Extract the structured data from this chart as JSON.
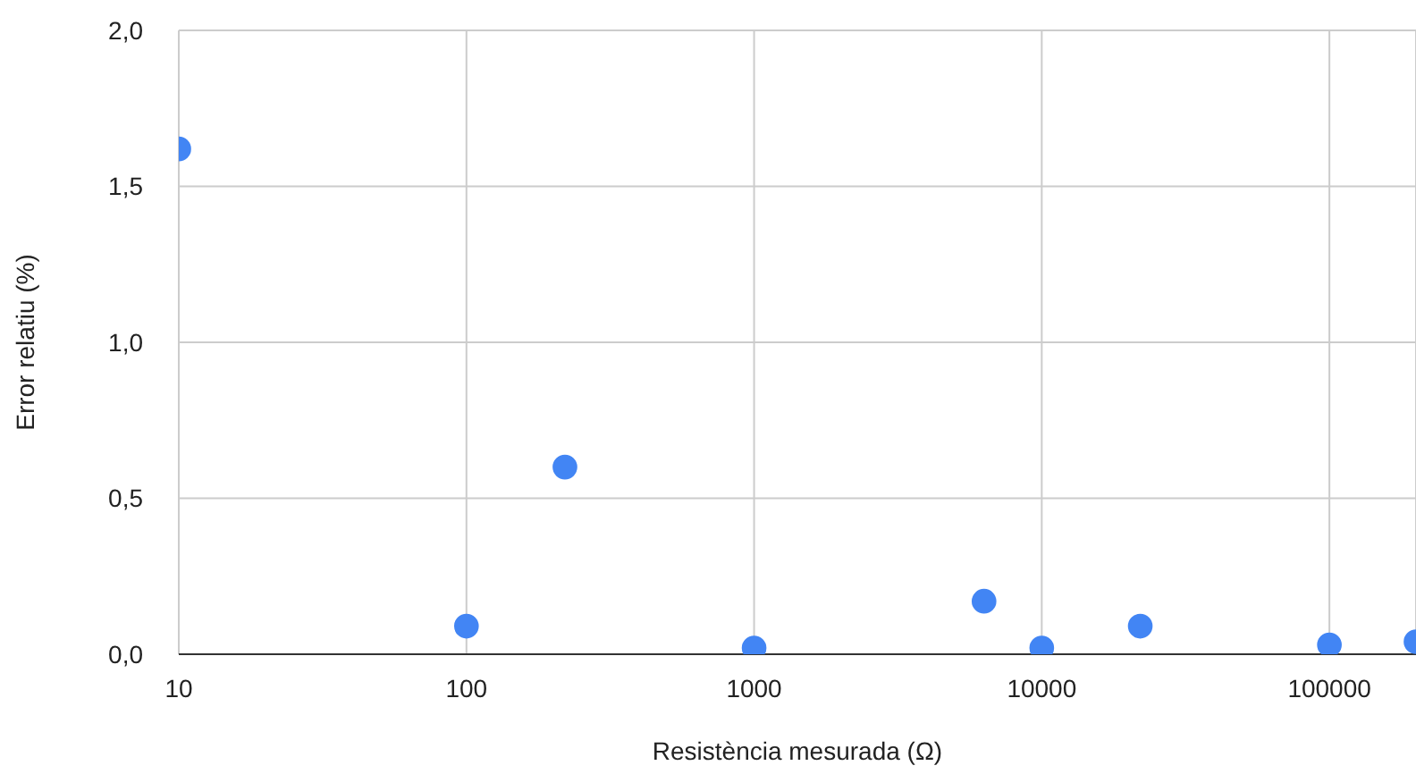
{
  "chart_data": {
    "type": "scatter",
    "xlabel": "Resistència mesurada (Ω)",
    "ylabel": "Error relatiu (%)",
    "log": "x",
    "grid": true,
    "marker": "circle",
    "xlim": [
      10,
      200000
    ],
    "xticks": [
      10,
      100,
      1000,
      10000,
      100000
    ],
    "ylim": [
      0,
      2
    ],
    "yticks": [
      {
        "value": 0,
        "label": "0,0"
      },
      {
        "value": 0.5,
        "label": "0,5"
      },
      {
        "value": 1,
        "label": "1,0"
      },
      {
        "value": 1.5,
        "label": "1,5"
      },
      {
        "value": 2,
        "label": "2,0"
      }
    ],
    "series": [
      {
        "color": "#4285f4",
        "x": [
          10,
          100,
          220,
          1000,
          6300,
          10000,
          22000,
          100000,
          200000
        ],
        "values": [
          1.62,
          0.09,
          0.6,
          0.02,
          0.17,
          0.02,
          0.09,
          0.03,
          0.04
        ]
      }
    ]
  }
}
